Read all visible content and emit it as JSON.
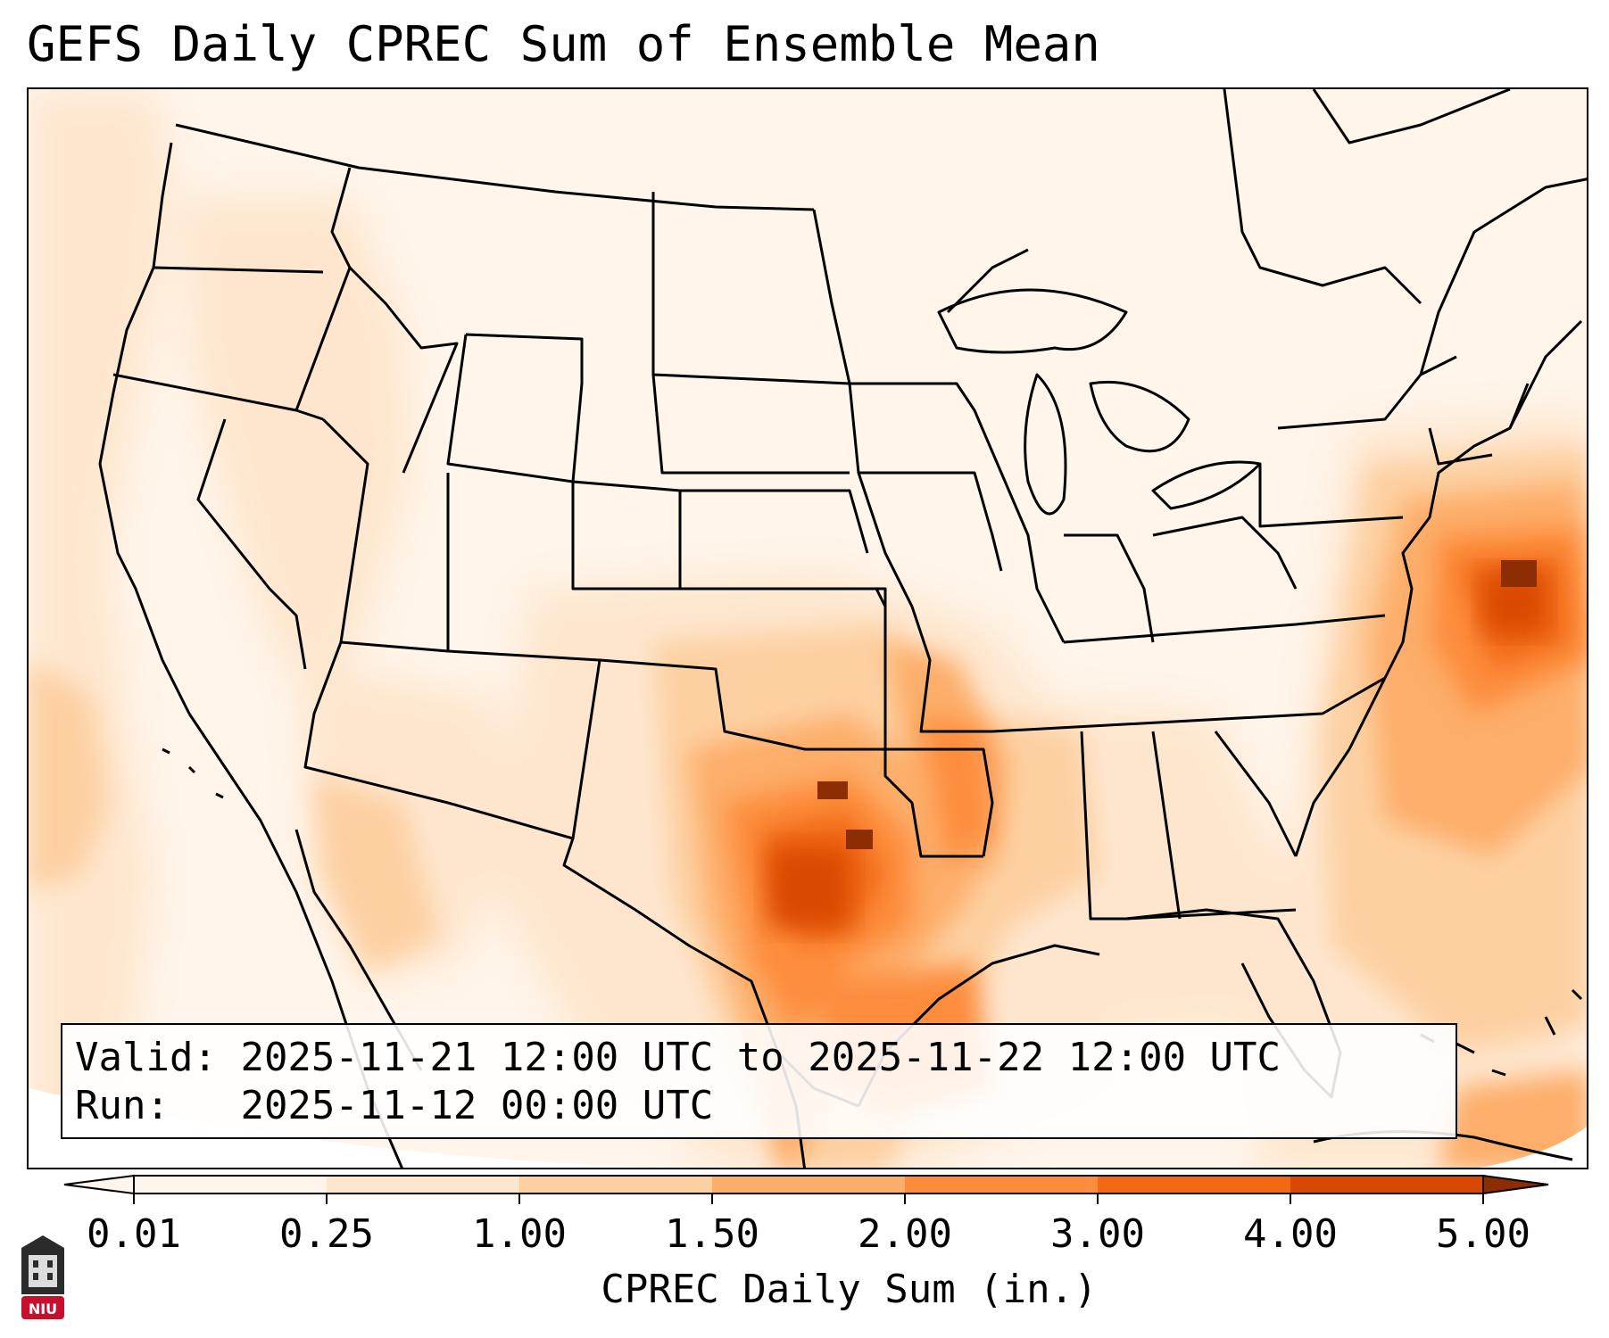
{
  "title": "GEFS Daily CPREC Sum of Ensemble Mean",
  "info": {
    "valid_label": "Valid:",
    "valid_value": "2025-11-21 12:00 UTC to 2025-11-22 12:00 UTC",
    "run_label": "Run:",
    "run_value": "2025-11-12 00:00 UTC"
  },
  "colorbar": {
    "label": "CPREC Daily Sum (in.)",
    "ticks": [
      "0.01",
      "0.25",
      "1.00",
      "1.50",
      "2.00",
      "3.00",
      "4.00",
      "5.00"
    ],
    "colors": [
      "#fff5eb",
      "#fee6ce",
      "#fdd0a2",
      "#fdae6b",
      "#fd8d3c",
      "#f16913",
      "#d94801",
      "#8c2d04"
    ],
    "extend": "both"
  },
  "logo": {
    "text": "NIU",
    "color": "#c8102e"
  },
  "map": {
    "projection": "Lambert Conformal (CONUS)",
    "boundaries": "US states, Canada, Mexico, Cuba, Bahamas coastlines",
    "maxima": [
      {
        "region": "Central Texas / Oklahoma",
        "value_range": "4.00-5.00+"
      },
      {
        "region": "Western Atlantic offshore Carolinas",
        "value_range": "4.00-5.00+"
      },
      {
        "region": "Louisiana / Arkansas",
        "value_range": "2.00-3.00"
      },
      {
        "region": "Western Gulf of Mexico",
        "value_range": "2.00-3.00"
      }
    ]
  }
}
